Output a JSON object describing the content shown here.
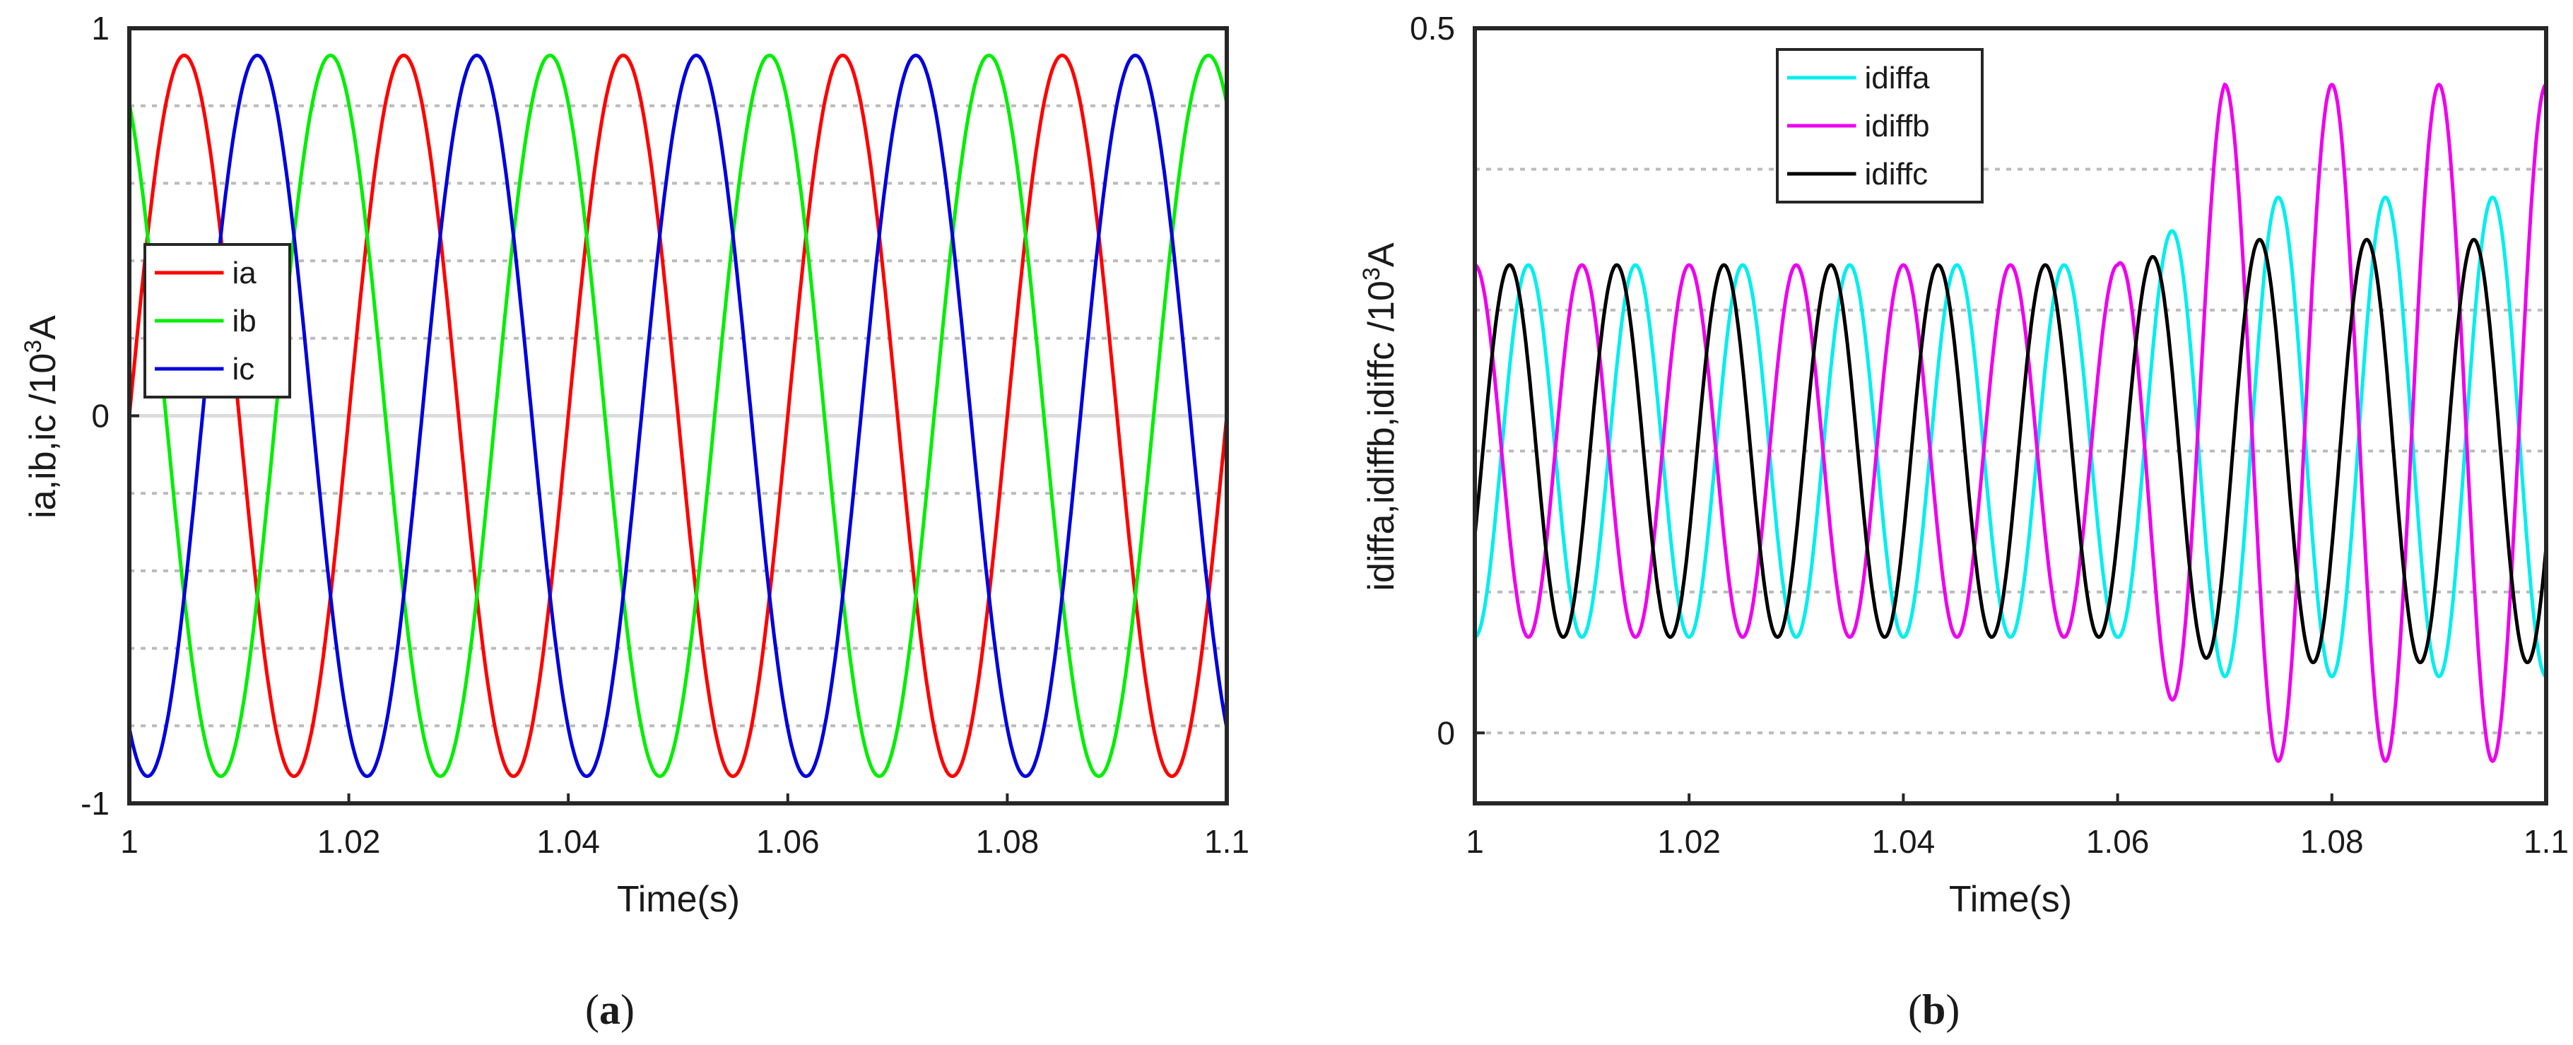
{
  "chart_data": [
    {
      "type": "line",
      "panel_label": "a",
      "xlabel": "Time(s)",
      "ylabel": "ia,ib,ic /10",
      "ylabel_sup": "3",
      "ylabel_unit": "A",
      "xlim": [
        1,
        1.1
      ],
      "ylim": [
        -1,
        1
      ],
      "xticks": [
        "1",
        "1.02",
        "1.04",
        "1.06",
        "1.08",
        "1.1"
      ],
      "yticks": [
        "-1",
        "0",
        "1"
      ],
      "grid": "horizontal dotted",
      "legend_position": "left-middle",
      "frequency_hz": 50,
      "series": [
        {
          "name": "ia",
          "color": "#ff0000",
          "amplitude": 0.93,
          "phase_deg": 0
        },
        {
          "name": "ib",
          "color": "#00ee00",
          "amplitude": 0.93,
          "phase_deg": 120
        },
        {
          "name": "ic",
          "color": "#0000dd",
          "amplitude": 0.93,
          "phase_deg": -120
        }
      ]
    },
    {
      "type": "line",
      "panel_label": "b",
      "xlabel": "Time(s)",
      "ylabel": "idiffa,idiffb,idiffc /10",
      "ylabel_sup": "3",
      "ylabel_unit": "A",
      "xlim": [
        1,
        1.1
      ],
      "ylim": [
        -0.05,
        0.5
      ],
      "xticks": [
        "1",
        "1.02",
        "1.04",
        "1.06",
        "1.08",
        "1.1"
      ],
      "yticks": [
        "0",
        "0.5"
      ],
      "grid": "horizontal dotted",
      "legend_position": "top-center",
      "frequency_hz": 100,
      "fault_time": 1.06,
      "series": [
        {
          "name": "idiffa",
          "color": "#00eeee",
          "offset": 0.2,
          "amplitude": 0.132,
          "post_fault": {
            "offset": 0.21,
            "amplitude": 0.17
          }
        },
        {
          "name": "idiffb",
          "color": "#ee00ee",
          "offset": 0.2,
          "amplitude": 0.132,
          "post_fault": {
            "offset": 0.22,
            "amplitude": 0.24
          }
        },
        {
          "name": "idiffc",
          "color": "#000000",
          "offset": 0.2,
          "amplitude": 0.132,
          "post_fault": {
            "offset": 0.2,
            "amplitude": 0.15
          }
        }
      ]
    }
  ]
}
